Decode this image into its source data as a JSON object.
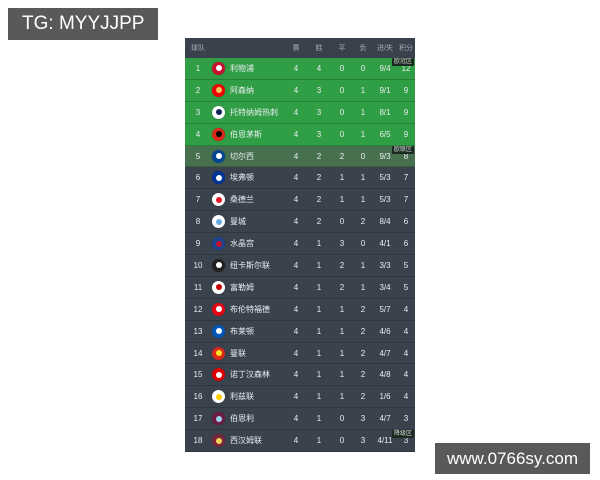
{
  "watermarks": {
    "telegram": "TG: MYYJJPP",
    "site": "www.0766sy.com"
  },
  "colors": {
    "watermark_bg": "#59595b",
    "watermark_text": "#ffffff",
    "header_bg": "#3a414d",
    "header_text": "#a7aeb8",
    "row_bg": "#3a424e",
    "row_text": "#e9edf0",
    "ucl_zone_bg": "#2f9e45",
    "uel_zone_bg": "#47704f",
    "badge_bg": "#1b2a20",
    "badge_text": "#d7ded8"
  },
  "table": {
    "header": {
      "team": "球队",
      "played": "赛",
      "win": "胜",
      "draw": "平",
      "loss": "负",
      "goals": "进/失",
      "points": "积分"
    },
    "rows": [
      {
        "rank": "1",
        "team": "利物浦",
        "played": "4",
        "win": "4",
        "draw": "0",
        "loss": "0",
        "goals": "9/4",
        "points": "12",
        "zone": "ucl",
        "tag": "欧冠区",
        "logo": [
          "#c8102e",
          "#ffffff"
        ]
      },
      {
        "rank": "2",
        "team": "阿森纳",
        "played": "4",
        "win": "3",
        "draw": "0",
        "loss": "1",
        "goals": "9/1",
        "points": "9",
        "zone": "ucl",
        "tag": "",
        "logo": [
          "#ef0107",
          "#f6c65d"
        ]
      },
      {
        "rank": "3",
        "team": "托特纳姆热刺",
        "played": "4",
        "win": "3",
        "draw": "0",
        "loss": "1",
        "goals": "8/1",
        "points": "9",
        "zone": "ucl",
        "tag": "",
        "logo": [
          "#ffffff",
          "#132257"
        ]
      },
      {
        "rank": "4",
        "team": "伯恩茅斯",
        "played": "4",
        "win": "3",
        "draw": "0",
        "loss": "1",
        "goals": "6/5",
        "points": "9",
        "zone": "ucl",
        "tag": "",
        "logo": [
          "#da291c",
          "#000000"
        ]
      },
      {
        "rank": "5",
        "team": "切尔西",
        "played": "4",
        "win": "2",
        "draw": "2",
        "loss": "0",
        "goals": "9/3",
        "points": "8",
        "zone": "uel",
        "tag": "欧联区",
        "logo": [
          "#034694",
          "#ffffff"
        ]
      },
      {
        "rank": "6",
        "team": "埃弗顿",
        "played": "4",
        "win": "2",
        "draw": "1",
        "loss": "1",
        "goals": "5/3",
        "points": "7",
        "zone": "",
        "tag": "",
        "logo": [
          "#003399",
          "#ffffff"
        ]
      },
      {
        "rank": "7",
        "team": "桑德兰",
        "played": "4",
        "win": "2",
        "draw": "1",
        "loss": "1",
        "goals": "5/3",
        "points": "7",
        "zone": "",
        "tag": "",
        "logo": [
          "#ffffff",
          "#eb172b"
        ]
      },
      {
        "rank": "8",
        "team": "曼城",
        "played": "4",
        "win": "2",
        "draw": "0",
        "loss": "2",
        "goals": "8/4",
        "points": "6",
        "zone": "",
        "tag": "",
        "logo": [
          "#ffffff",
          "#6cabdd"
        ]
      },
      {
        "rank": "9",
        "team": "水晶宫",
        "played": "4",
        "win": "1",
        "draw": "3",
        "loss": "0",
        "goals": "4/1",
        "points": "6",
        "zone": "",
        "tag": "",
        "logo": [
          "#1b458f",
          "#c4122e"
        ]
      },
      {
        "rank": "10",
        "team": "纽卡斯尔联",
        "played": "4",
        "win": "1",
        "draw": "2",
        "loss": "1",
        "goals": "3/3",
        "points": "5",
        "zone": "",
        "tag": "",
        "logo": [
          "#241f20",
          "#ffffff"
        ]
      },
      {
        "rank": "11",
        "team": "富勒姆",
        "played": "4",
        "win": "1",
        "draw": "2",
        "loss": "1",
        "goals": "3/4",
        "points": "5",
        "zone": "",
        "tag": "",
        "logo": [
          "#ffffff",
          "#cc0000"
        ]
      },
      {
        "rank": "12",
        "team": "布伦特福德",
        "played": "4",
        "win": "1",
        "draw": "1",
        "loss": "2",
        "goals": "5/7",
        "points": "4",
        "zone": "",
        "tag": "",
        "logo": [
          "#e30613",
          "#ffffff"
        ]
      },
      {
        "rank": "13",
        "team": "布莱顿",
        "played": "4",
        "win": "1",
        "draw": "1",
        "loss": "2",
        "goals": "4/6",
        "points": "4",
        "zone": "",
        "tag": "",
        "logo": [
          "#0057b8",
          "#ffffff"
        ]
      },
      {
        "rank": "14",
        "team": "曼联",
        "played": "4",
        "win": "1",
        "draw": "1",
        "loss": "2",
        "goals": "4/7",
        "points": "4",
        "zone": "",
        "tag": "",
        "logo": [
          "#da291c",
          "#fbe122"
        ]
      },
      {
        "rank": "15",
        "team": "诺丁汉森林",
        "played": "4",
        "win": "1",
        "draw": "1",
        "loss": "2",
        "goals": "4/8",
        "points": "4",
        "zone": "",
        "tag": "",
        "logo": [
          "#dd0000",
          "#ffffff"
        ]
      },
      {
        "rank": "16",
        "team": "利兹联",
        "played": "4",
        "win": "1",
        "draw": "1",
        "loss": "2",
        "goals": "1/6",
        "points": "4",
        "zone": "",
        "tag": "",
        "logo": [
          "#ffffff",
          "#ffcd00"
        ]
      },
      {
        "rank": "17",
        "team": "伯恩利",
        "played": "4",
        "win": "1",
        "draw": "0",
        "loss": "3",
        "goals": "4/7",
        "points": "3",
        "zone": "",
        "tag": "",
        "logo": [
          "#6c1d45",
          "#99d6ea"
        ]
      },
      {
        "rank": "18",
        "team": "西汉姆联",
        "played": "4",
        "win": "1",
        "draw": "0",
        "loss": "3",
        "goals": "4/11",
        "points": "3",
        "zone": "",
        "tag": "降级区",
        "logo": [
          "#7a263a",
          "#f3d459"
        ]
      }
    ]
  }
}
